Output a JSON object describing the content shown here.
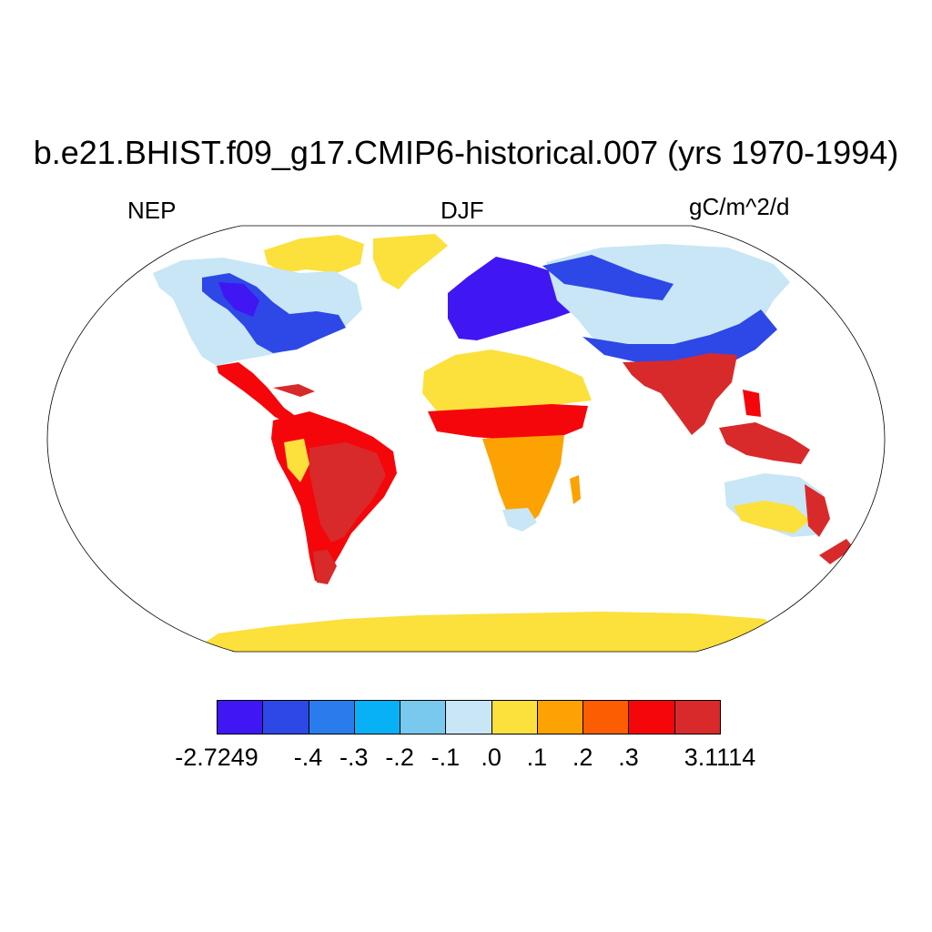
{
  "header": {
    "title": "b.e21.BHIST.f09_g17.CMIP6-historical.007 (yrs 1970-1994)",
    "left": "NEP",
    "center": "DJF",
    "right": "gC/m^2/d"
  },
  "colorbar": {
    "colors": [
      "#4016f3",
      "#2d48e6",
      "#2a7ced",
      "#08b0f5",
      "#79c8ed",
      "#c8e6f5",
      "#fce03c",
      "#fca202",
      "#fc5d02",
      "#f5060a",
      "#d82a2a"
    ],
    "labels": [
      "-2.7249",
      "-.4",
      "-.3",
      "-.2",
      "-.1",
      ".0",
      ".1",
      ".2",
      ".3",
      "3.1114"
    ]
  },
  "map": {
    "projection": "robinson",
    "colors": {
      "deep_blue": "#4016f3",
      "blue": "#2d48e6",
      "light_blue": "#c8e6f5",
      "yellow": "#fce03c",
      "orange": "#fca202",
      "red": "#f5060a",
      "dark_red": "#d82a2a"
    }
  }
}
